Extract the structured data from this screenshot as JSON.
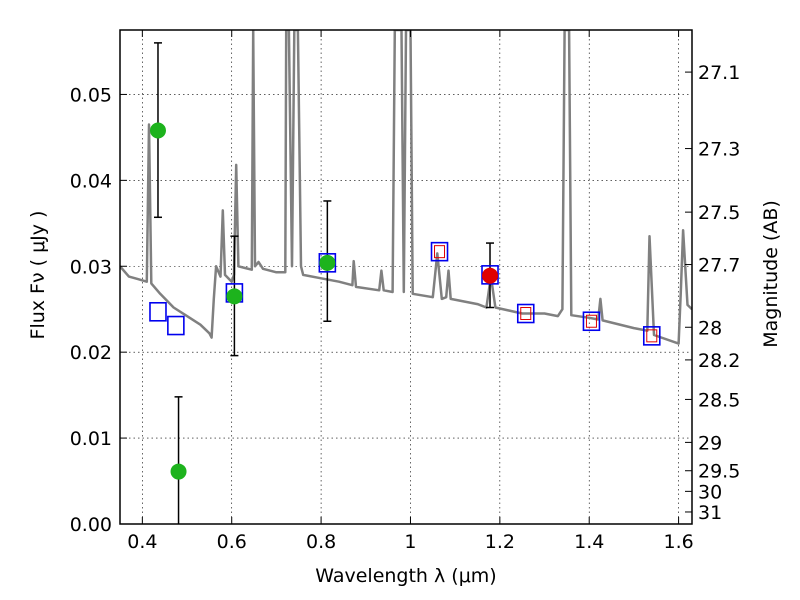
{
  "chart_data": {
    "type": "scatter",
    "xlabel": "Wavelength  λ (μm)",
    "ylabel": "Flux  Fν  ( μJy )",
    "ylabel_right": "Magnitude (AB)",
    "xlim": [
      0.35,
      1.63
    ],
    "ylim": [
      0.0,
      0.0575
    ],
    "grid": true,
    "x_ticks": [
      0.4,
      0.6,
      0.8,
      1.0,
      1.2,
      1.4,
      1.6
    ],
    "x_tick_labels": [
      "0.4",
      "0.6",
      "0.8",
      "1",
      "1.2",
      "1.4",
      "1.6"
    ],
    "y_ticks": [
      0.0,
      0.01,
      0.02,
      0.03,
      0.04,
      0.05
    ],
    "y_tick_labels": [
      "0.00",
      "0.01",
      "0.02",
      "0.03",
      "0.04",
      "0.05"
    ],
    "right_ticks": [
      {
        "label": "27.1",
        "flux": 0.0526
      },
      {
        "label": "27.3",
        "flux": 0.0437
      },
      {
        "label": "27.5",
        "flux": 0.0363
      },
      {
        "label": "27.7",
        "flux": 0.0302
      },
      {
        "label": "28",
        "flux": 0.0229
      },
      {
        "label": "28.2",
        "flux": 0.0191
      },
      {
        "label": "28.5",
        "flux": 0.0145
      },
      {
        "label": "29",
        "flux": 0.0095
      },
      {
        "label": "29.5",
        "flux": 0.0062
      },
      {
        "label": "30",
        "flux": 0.0038
      },
      {
        "label": "31",
        "flux": 0.0014
      }
    ],
    "series": [
      {
        "name": "observed_photometry",
        "marker": "circle",
        "color": "#1db31d",
        "points": [
          {
            "x": 0.435,
            "y": 0.0458,
            "err_lo": 0.0357,
            "err_hi": 0.056
          },
          {
            "x": 0.481,
            "y": 0.0061,
            "err_lo": 0.0,
            "err_hi": 0.0148
          },
          {
            "x": 0.606,
            "y": 0.0265,
            "err_lo": 0.0196,
            "err_hi": 0.0335
          },
          {
            "x": 0.814,
            "y": 0.0304,
            "err_lo": 0.0236,
            "err_hi": 0.0376
          }
        ]
      },
      {
        "name": "highlighted_photometry",
        "marker": "circle",
        "color": "#e00000",
        "points": [
          {
            "x": 1.178,
            "y": 0.0289,
            "err_lo": 0.0252,
            "err_hi": 0.0327
          }
        ]
      },
      {
        "name": "model_synthetic_photometry",
        "marker": "square",
        "color": "#0000ee",
        "points": [
          {
            "x": 0.435,
            "y": 0.0247
          },
          {
            "x": 0.475,
            "y": 0.0231
          },
          {
            "x": 0.606,
            "y": 0.0269
          },
          {
            "x": 0.814,
            "y": 0.0304
          },
          {
            "x": 1.065,
            "y": 0.0317
          },
          {
            "x": 1.178,
            "y": 0.029
          },
          {
            "x": 1.258,
            "y": 0.0245
          },
          {
            "x": 1.405,
            "y": 0.0236
          },
          {
            "x": 1.54,
            "y": 0.0219
          }
        ]
      },
      {
        "name": "model_inner_squares",
        "marker": "square-small",
        "color": "#e00000",
        "points": [
          {
            "x": 1.065,
            "y": 0.0317
          },
          {
            "x": 1.258,
            "y": 0.0245
          },
          {
            "x": 1.405,
            "y": 0.0236
          },
          {
            "x": 1.54,
            "y": 0.0219
          }
        ]
      },
      {
        "name": "model_spectrum",
        "type": "line",
        "color": "#808080",
        "points": [
          [
            0.35,
            0.03
          ],
          [
            0.37,
            0.0288
          ],
          [
            0.39,
            0.0285
          ],
          [
            0.41,
            0.0282
          ],
          [
            0.415,
            0.0465
          ],
          [
            0.42,
            0.028
          ],
          [
            0.44,
            0.0268
          ],
          [
            0.47,
            0.0252
          ],
          [
            0.5,
            0.0242
          ],
          [
            0.53,
            0.0232
          ],
          [
            0.55,
            0.0222
          ],
          [
            0.555,
            0.0217
          ],
          [
            0.56,
            0.0262
          ],
          [
            0.565,
            0.03
          ],
          [
            0.575,
            0.0288
          ],
          [
            0.58,
            0.0365
          ],
          [
            0.585,
            0.029
          ],
          [
            0.6,
            0.0282
          ],
          [
            0.605,
            0.029
          ],
          [
            0.61,
            0.0418
          ],
          [
            0.615,
            0.03
          ],
          [
            0.63,
            0.0298
          ],
          [
            0.645,
            0.0296
          ],
          [
            0.648,
            0.0575
          ],
          [
            0.652,
            0.03
          ],
          [
            0.66,
            0.0305
          ],
          [
            0.67,
            0.0297
          ],
          [
            0.7,
            0.0293
          ],
          [
            0.72,
            0.0293
          ],
          [
            0.722,
            0.0575
          ],
          [
            0.728,
            0.0575
          ],
          [
            0.735,
            0.03
          ],
          [
            0.74,
            0.0575
          ],
          [
            0.748,
            0.0575
          ],
          [
            0.755,
            0.03
          ],
          [
            0.76,
            0.029
          ],
          [
            0.8,
            0.0286
          ],
          [
            0.84,
            0.0282
          ],
          [
            0.87,
            0.0278
          ],
          [
            0.873,
            0.0306
          ],
          [
            0.878,
            0.0276
          ],
          [
            0.93,
            0.0272
          ],
          [
            0.935,
            0.0295
          ],
          [
            0.94,
            0.0272
          ],
          [
            0.96,
            0.027
          ],
          [
            0.965,
            0.0575
          ],
          [
            0.98,
            0.0575
          ],
          [
            0.985,
            0.027
          ],
          [
            0.99,
            0.0575
          ],
          [
            1.0,
            0.0575
          ],
          [
            1.005,
            0.0268
          ],
          [
            1.05,
            0.0264
          ],
          [
            1.06,
            0.0315
          ],
          [
            1.07,
            0.0262
          ],
          [
            1.08,
            0.0264
          ],
          [
            1.085,
            0.0295
          ],
          [
            1.09,
            0.0262
          ],
          [
            1.15,
            0.0256
          ],
          [
            1.17,
            0.0252
          ],
          [
            1.18,
            0.0288
          ],
          [
            1.19,
            0.0252
          ],
          [
            1.25,
            0.0245
          ],
          [
            1.3,
            0.0245
          ],
          [
            1.33,
            0.0242
          ],
          [
            1.34,
            0.025
          ],
          [
            1.345,
            0.0575
          ],
          [
            1.355,
            0.0575
          ],
          [
            1.36,
            0.0243
          ],
          [
            1.4,
            0.024
          ],
          [
            1.42,
            0.0238
          ],
          [
            1.425,
            0.0262
          ],
          [
            1.43,
            0.0237
          ],
          [
            1.5,
            0.0228
          ],
          [
            1.53,
            0.0225
          ],
          [
            1.535,
            0.0335
          ],
          [
            1.545,
            0.022
          ],
          [
            1.6,
            0.021
          ],
          [
            1.605,
            0.027
          ],
          [
            1.61,
            0.0342
          ],
          [
            1.62,
            0.0255
          ],
          [
            1.63,
            0.025
          ]
        ]
      }
    ]
  }
}
